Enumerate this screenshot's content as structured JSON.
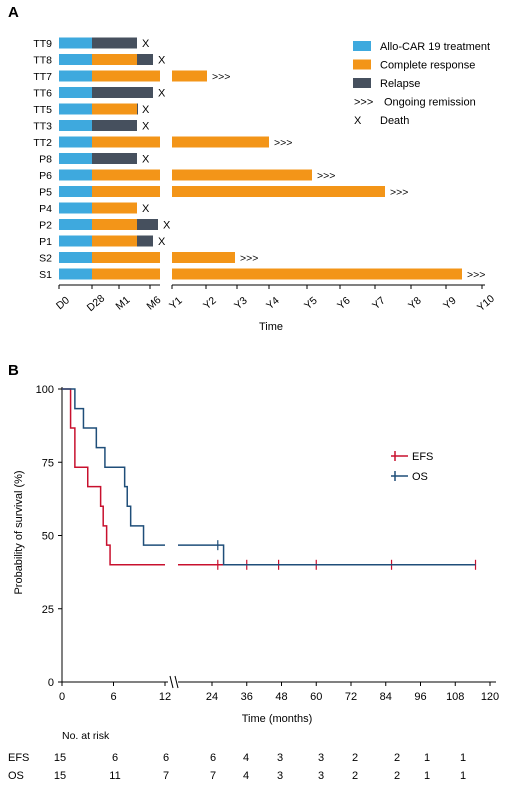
{
  "panelA": {
    "label": "A",
    "chart_data": {
      "type": "bar",
      "title": "",
      "xlabel": "Time",
      "ylabel": "",
      "orientation": "horizontal-stacked",
      "x_ticks": [
        "D0",
        "D28",
        "M1",
        "M6",
        "Y1",
        "Y2",
        "Y3",
        "Y4",
        "Y5",
        "Y6",
        "Y7",
        "Y8",
        "Y9",
        "Y10"
      ],
      "patients": [
        {
          "id": "TT9",
          "segments": [
            {
              "phase": "treatment",
              "end": "D28"
            },
            {
              "phase": "relapse",
              "end": "M1+"
            }
          ],
          "outcome": "X"
        },
        {
          "id": "TT8",
          "segments": [
            {
              "phase": "treatment",
              "end": "D28"
            },
            {
              "phase": "cr",
              "end": "M1+"
            },
            {
              "phase": "relapse",
              "end": "M6-"
            }
          ],
          "outcome": "X"
        },
        {
          "id": "TT7",
          "segments": [
            {
              "phase": "treatment",
              "end": "D28"
            },
            {
              "phase": "cr",
              "end": "~Y2"
            }
          ],
          "outcome": ">>>"
        },
        {
          "id": "TT6",
          "segments": [
            {
              "phase": "treatment",
              "end": "D28"
            },
            {
              "phase": "relapse",
              "end": "M6-"
            }
          ],
          "outcome": "X"
        },
        {
          "id": "TT5",
          "segments": [
            {
              "phase": "treatment",
              "end": "D28"
            },
            {
              "phase": "cr",
              "end": "M1+"
            },
            {
              "phase": "relapse",
              "end": "M1+"
            }
          ],
          "outcome": "X"
        },
        {
          "id": "TT3",
          "segments": [
            {
              "phase": "treatment",
              "end": "D28"
            },
            {
              "phase": "relapse",
              "end": "M1+"
            }
          ],
          "outcome": "X"
        },
        {
          "id": "TT2",
          "segments": [
            {
              "phase": "treatment",
              "end": "D28"
            },
            {
              "phase": "cr",
              "end": "~Y4"
            }
          ],
          "outcome": ">>>"
        },
        {
          "id": "P8",
          "segments": [
            {
              "phase": "treatment",
              "end": "D28"
            },
            {
              "phase": "relapse",
              "end": "M1+"
            }
          ],
          "outcome": "X"
        },
        {
          "id": "P6",
          "segments": [
            {
              "phase": "treatment",
              "end": "D28"
            },
            {
              "phase": "cr",
              "end": "~Y5"
            }
          ],
          "outcome": ">>>"
        },
        {
          "id": "P5",
          "segments": [
            {
              "phase": "treatment",
              "end": "D28"
            },
            {
              "phase": "cr",
              "end": "~Y7"
            }
          ],
          "outcome": ">>>"
        },
        {
          "id": "P4",
          "segments": [
            {
              "phase": "treatment",
              "end": "D28"
            },
            {
              "phase": "cr",
              "end": "M1+"
            }
          ],
          "outcome": "X"
        },
        {
          "id": "P2",
          "segments": [
            {
              "phase": "treatment",
              "end": "D28"
            },
            {
              "phase": "cr",
              "end": "M1+"
            },
            {
              "phase": "relapse",
              "end": "M6"
            }
          ],
          "outcome": "X"
        },
        {
          "id": "P1",
          "segments": [
            {
              "phase": "treatment",
              "end": "D28"
            },
            {
              "phase": "cr",
              "end": "M1+"
            },
            {
              "phase": "relapse",
              "end": "M6-"
            }
          ],
          "outcome": "X"
        },
        {
          "id": "S2",
          "segments": [
            {
              "phase": "treatment",
              "end": "D28"
            },
            {
              "phase": "cr",
              "end": "~Y3"
            }
          ],
          "outcome": ">>>"
        },
        {
          "id": "S1",
          "segments": [
            {
              "phase": "treatment",
              "end": "D28"
            },
            {
              "phase": "cr",
              "end": "~Y9.3"
            }
          ],
          "outcome": ">>>"
        }
      ],
      "legend": [
        {
          "key": "treatment",
          "label": "Allo-CAR 19 treatment",
          "color": "#3ea9de"
        },
        {
          "key": "cr",
          "label": "Complete response",
          "color": "#f39518"
        },
        {
          "key": "relapse",
          "label": "Relapse",
          "color": "#46505e"
        },
        {
          "key": "ongoing",
          "label": "Ongoing remission",
          "symbol": ">>>"
        },
        {
          "key": "death",
          "label": "Death",
          "symbol": "X"
        }
      ],
      "legend_position": "top-right"
    }
  },
  "panelB": {
    "label": "B",
    "chart_data": {
      "type": "line",
      "title": "",
      "xlabel": "Time (months)",
      "ylabel": "Probability of survival (%)",
      "ylim": [
        0,
        100
      ],
      "y_ticks": [
        "0",
        "25",
        "50",
        "75",
        "100"
      ],
      "x_ticks_left": [
        "0",
        "6",
        "12"
      ],
      "x_ticks_right": [
        "24",
        "36",
        "48",
        "60",
        "72",
        "84",
        "96",
        "108",
        "120"
      ],
      "broken_axis": "between 12 and 24 months",
      "series": [
        {
          "name": "EFS",
          "color": "#c8102e",
          "steps": [
            [
              0,
              100
            ],
            [
              1,
              86.7
            ],
            [
              1.5,
              73.3
            ],
            [
              3,
              66.7
            ],
            [
              4.5,
              60
            ],
            [
              4.8,
              53.3
            ],
            [
              5.2,
              46.7
            ],
            [
              5.6,
              40
            ],
            [
              115,
              40
            ]
          ],
          "censor_months": [
            26,
            36,
            47,
            60,
            86,
            115
          ]
        },
        {
          "name": "OS",
          "color": "#1f4e79",
          "steps": [
            [
              0,
              100
            ],
            [
              1.5,
              93.3
            ],
            [
              2.5,
              86.7
            ],
            [
              4,
              80
            ],
            [
              5,
              73.3
            ],
            [
              7.3,
              66.7
            ],
            [
              7.6,
              60
            ],
            [
              8,
              53.3
            ],
            [
              9.5,
              46.7
            ],
            [
              28,
              40
            ],
            [
              115,
              40
            ]
          ],
          "censor_months": [
            26
          ]
        }
      ],
      "legend_position": "right"
    },
    "risk_table": {
      "title": "No. at risk",
      "rows": [
        {
          "label": "EFS",
          "values": [
            "15",
            "6",
            "6",
            "6",
            "4",
            "3",
            "3",
            "2",
            "2",
            "1",
            "1"
          ]
        },
        {
          "label": "OS",
          "values": [
            "15",
            "11",
            "7",
            "7",
            "4",
            "3",
            "3",
            "2",
            "2",
            "1",
            "1"
          ]
        }
      ]
    }
  }
}
